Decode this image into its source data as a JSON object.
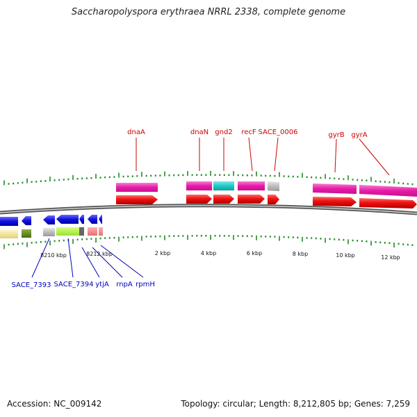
{
  "title": "Saccharopolyspora erythraea NRRL 2338, complete genome",
  "footer": {
    "accession": "Accession: NC_009142",
    "stats": "Topology: circular; Length: 8,212,805 bp; Genes: 7,259"
  },
  "colors": {
    "forward_gene": "#f01010",
    "cds_magenta": "#e61ba8",
    "cds_cyan": "#1fc8c8",
    "cds_grey": "#b8b8b8",
    "reverse_gene": "#1010e0",
    "backbone": "#888888",
    "tick": "#1f8a1f",
    "label_top": "#cc0000",
    "label_bottom": "#0000bb"
  },
  "scale_labels": [
    "8210 kbp",
    "8212 kbp",
    "2 kbp",
    "4 kbp",
    "6 kbp",
    "8 kbp",
    "10 kbp",
    "12 kbp"
  ],
  "top_gene_labels": [
    "dnaA",
    "dnaN",
    "gnd2",
    "recF",
    "SACE_0006",
    "gyrB",
    "gyrA"
  ],
  "bottom_gene_labels": [
    "SACE_7393",
    "SACE_7394",
    "ytjA",
    "rnpA",
    "rpmH"
  ]
}
